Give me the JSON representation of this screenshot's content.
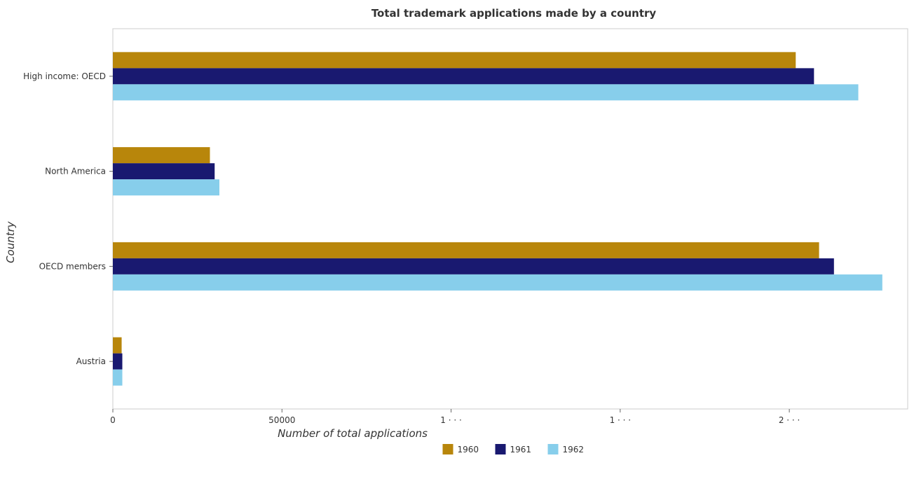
{
  "chart_data": {
    "type": "bar",
    "orientation": "horizontal",
    "title": "Total trademark applications made by a country",
    "xlabel": "Number of total applications",
    "ylabel": "Country",
    "categories": [
      "High income: OECD",
      "North America",
      "OECD members",
      "Austria"
    ],
    "series": [
      {
        "name": "1960",
        "color": "#b8860b",
        "values": [
          201900,
          28700,
          208800,
          2600
        ]
      },
      {
        "name": "1961",
        "color": "#191970",
        "values": [
          207300,
          30100,
          213200,
          2800
        ]
      },
      {
        "name": "1962",
        "color": "#87ceeb",
        "values": [
          220400,
          31500,
          227500,
          2800
        ]
      }
    ],
    "xlim": [
      0,
      235000
    ],
    "xticks": [
      0,
      50000,
      100000,
      150000,
      200000
    ],
    "xtick_labels": [
      "0",
      "50000",
      "1 · · ·",
      "1 · · ·",
      "2 · · ·"
    ],
    "grid": false,
    "legend_position": "bottom-center"
  }
}
